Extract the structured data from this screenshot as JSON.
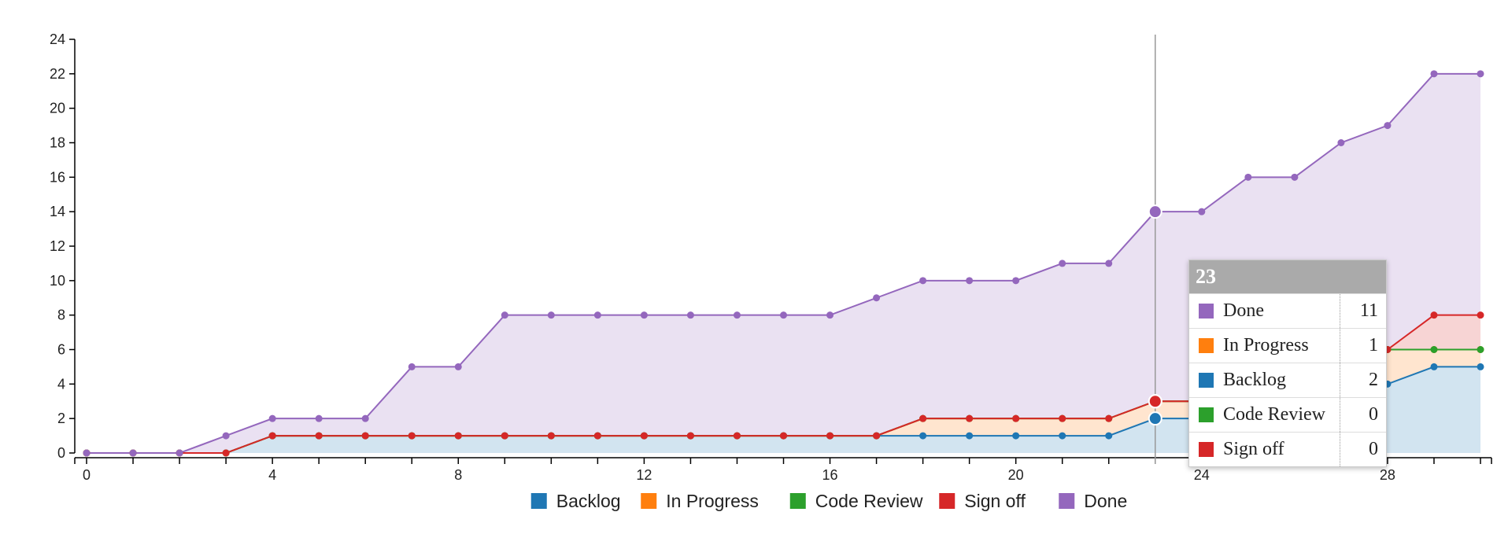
{
  "chart_data": {
    "type": "area",
    "stacked": true,
    "x": [
      0,
      1,
      2,
      3,
      4,
      5,
      6,
      7,
      8,
      9,
      10,
      11,
      12,
      13,
      14,
      15,
      16,
      17,
      18,
      19,
      20,
      21,
      22,
      23,
      24,
      25,
      26,
      27,
      28,
      29,
      30
    ],
    "x_ticks": [
      0,
      4,
      8,
      12,
      16,
      20,
      24,
      28
    ],
    "xlim": [
      0,
      30
    ],
    "ylim": [
      0,
      24
    ],
    "y_ticks": [
      0,
      2,
      4,
      6,
      8,
      10,
      12,
      14,
      16,
      18,
      20,
      22,
      24
    ],
    "grid": false,
    "legend_position": "bottom",
    "series": [
      {
        "name": "Backlog",
        "color": "#1f77b4",
        "values": [
          0,
          0,
          0,
          0,
          1,
          1,
          1,
          1,
          1,
          1,
          1,
          1,
          1,
          1,
          1,
          1,
          1,
          1,
          1,
          1,
          1,
          1,
          1,
          2,
          2,
          2,
          2,
          2,
          4,
          5,
          5
        ]
      },
      {
        "name": "In Progress",
        "color": "#ff7f0e",
        "values": [
          0,
          0,
          0,
          0,
          0,
          0,
          0,
          0,
          0,
          0,
          0,
          0,
          0,
          0,
          0,
          0,
          0,
          0,
          1,
          1,
          1,
          1,
          1,
          1,
          1,
          3,
          3,
          3,
          2,
          1,
          1
        ]
      },
      {
        "name": "Code Review",
        "color": "#2ca02c",
        "values": [
          0,
          0,
          0,
          0,
          0,
          0,
          0,
          0,
          0,
          0,
          0,
          0,
          0,
          0,
          0,
          0,
          0,
          0,
          0,
          0,
          0,
          0,
          0,
          0,
          0,
          0,
          0,
          0,
          0,
          0,
          0
        ]
      },
      {
        "name": "Sign off",
        "color": "#d62728",
        "values": [
          0,
          0,
          0,
          0,
          0,
          0,
          0,
          0,
          0,
          0,
          0,
          0,
          0,
          0,
          0,
          0,
          0,
          0,
          0,
          0,
          0,
          0,
          0,
          0,
          0,
          0,
          0,
          0,
          0,
          2,
          2
        ]
      },
      {
        "name": "Done",
        "color": "#9467bd",
        "values": [
          0,
          0,
          0,
          1,
          1,
          1,
          1,
          4,
          4,
          7,
          7,
          7,
          7,
          7,
          7,
          7,
          7,
          8,
          8,
          8,
          8,
          9,
          9,
          11,
          11,
          11,
          11,
          13,
          13,
          14,
          14
        ]
      }
    ],
    "hover": {
      "x": 23,
      "title": "23",
      "rows": [
        {
          "name": "Done",
          "value": "11",
          "color": "#9467bd"
        },
        {
          "name": "In Progress",
          "value": "1",
          "color": "#ff7f0e"
        },
        {
          "name": "Backlog",
          "value": "2",
          "color": "#1f77b4"
        },
        {
          "name": "Code Review",
          "value": "0",
          "color": "#2ca02c"
        },
        {
          "name": "Sign off",
          "value": "0",
          "color": "#d62728"
        }
      ]
    }
  }
}
